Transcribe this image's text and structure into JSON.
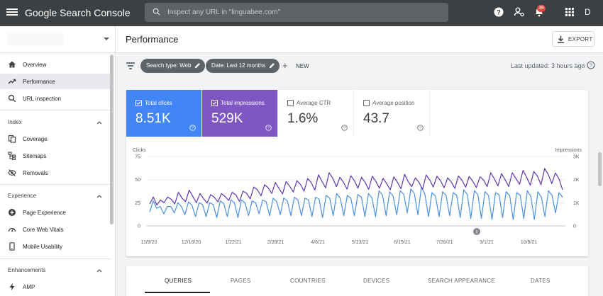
{
  "topbar": {
    "logo": "Google Search Console",
    "search_placeholder": "Inspect any URL in \"linguabee.com\"",
    "notification_count": "36",
    "avatar_letter": "D"
  },
  "sidebar": {
    "items_top": [
      {
        "label": "Overview",
        "icon": "home-icon"
      },
      {
        "label": "Performance",
        "icon": "trending-up-icon",
        "active": true
      },
      {
        "label": "URL inspection",
        "icon": "search-icon"
      }
    ],
    "sections": [
      {
        "title": "Index",
        "items": [
          {
            "label": "Coverage",
            "icon": "copy-icon"
          },
          {
            "label": "Sitemaps",
            "icon": "sitemap-icon"
          },
          {
            "label": "Removals",
            "icon": "visibility-off-icon"
          }
        ]
      },
      {
        "title": "Experience",
        "items": [
          {
            "label": "Page Experience",
            "icon": "add-circle-icon"
          },
          {
            "label": "Core Web Vitals",
            "icon": "speedometer-icon"
          },
          {
            "label": "Mobile Usability",
            "icon": "smartphone-icon"
          }
        ]
      },
      {
        "title": "Enhancements",
        "items": [
          {
            "label": "AMP",
            "icon": "bolt-icon"
          }
        ]
      }
    ]
  },
  "header": {
    "title": "Performance",
    "export_label": "EXPORT"
  },
  "filters": {
    "chips": [
      "Search type: Web",
      "Date: Last 12 months"
    ],
    "new_label": "NEW",
    "last_updated": "Last updated: 3 hours ago"
  },
  "metrics": [
    {
      "label": "Total clicks",
      "value": "8.51K",
      "checked": true,
      "color": "#4285f4"
    },
    {
      "label": "Total impressions",
      "value": "529K",
      "checked": true,
      "color": "#7e57c2"
    },
    {
      "label": "Average CTR",
      "value": "1.6%",
      "checked": false
    },
    {
      "label": "Average position",
      "value": "43.7",
      "checked": false
    }
  ],
  "chart_data": {
    "type": "line",
    "left_axis_label": "Clicks",
    "right_axis_label": "Impressions",
    "left_ticks": [
      "75",
      "50",
      "25",
      "0"
    ],
    "right_ticks": [
      "3K",
      "2K",
      "1K",
      "0"
    ],
    "left_ylim": [
      0,
      75
    ],
    "right_ylim": [
      0,
      3000
    ],
    "x_ticks": [
      "11/9/20",
      "12/16/20",
      "1/22/21",
      "2/28/21",
      "4/6/21",
      "5/13/21",
      "6/19/21",
      "7/26/21",
      "9/1/21",
      "10/8/21"
    ],
    "annotation_marker": "!",
    "series": [
      {
        "name": "Clicks",
        "color": "#4a90e2",
        "axis": "left",
        "values": [
          15,
          27,
          19,
          21,
          13,
          21,
          21,
          14,
          25,
          21,
          12,
          26,
          22,
          10,
          25,
          23,
          10,
          25,
          23,
          9,
          27,
          24,
          10,
          28,
          25,
          9,
          28,
          25,
          11,
          27,
          25,
          13,
          28,
          26,
          11,
          30,
          26,
          12,
          30,
          27,
          11,
          31,
          28,
          11,
          30,
          28,
          10,
          31,
          29,
          9,
          33,
          30,
          11,
          35,
          30,
          11,
          33,
          30,
          11,
          34,
          31,
          10,
          35,
          30,
          10,
          38,
          33,
          11,
          37,
          32,
          12,
          38,
          34,
          14,
          40,
          35,
          12,
          42,
          34,
          10,
          36,
          32,
          10,
          37,
          33,
          11,
          36,
          33,
          9,
          39,
          34,
          8,
          38,
          34,
          8,
          37,
          33,
          7,
          36,
          34,
          9,
          37,
          33,
          7,
          36,
          33,
          8,
          38,
          32,
          7,
          37,
          31,
          10,
          38,
          33,
          14,
          36,
          31
        ]
      },
      {
        "name": "Impressions",
        "color": "#5e35b1",
        "axis": "right",
        "values": [
          950,
          1250,
          900,
          1120,
          1000,
          1250,
          1150,
          950,
          1450,
          1200,
          1050,
          1550,
          1280,
          1000,
          1400,
          1180,
          990,
          1350,
          1240,
          1040,
          1400,
          1270,
          1100,
          1450,
          1340,
          1060,
          1500,
          1410,
          1170,
          1680,
          1560,
          1300,
          1780,
          1650,
          1400,
          1880,
          1620,
          1380,
          1920,
          1710,
          1470,
          1950,
          1790,
          1500,
          2050,
          1870,
          1550,
          2210,
          1930,
          1640,
          2300,
          2060,
          1700,
          2100,
          1880,
          1590,
          2170,
          1960,
          1630,
          2100,
          1880,
          1580,
          2150,
          1920,
          1630,
          2050,
          1830,
          1560,
          2120,
          1890,
          1610,
          2230,
          1920,
          1700,
          2080,
          1880,
          1580,
          2200,
          1990,
          1680,
          2150,
          1960,
          1650,
          2080,
          1900,
          1620,
          2160,
          1970,
          1670,
          2140,
          1930,
          1660,
          2120,
          1980,
          1700,
          2300,
          2040,
          1730,
          2260,
          2000,
          1700,
          2300,
          2050,
          1800,
          2400,
          2100,
          1760,
          2350,
          2150,
          1780,
          2480,
          2230,
          1830,
          2290,
          2040,
          1560
        ]
      }
    ]
  },
  "tabs": [
    "QUERIES",
    "PAGES",
    "COUNTRIES",
    "DEVICES",
    "SEARCH APPEARANCE",
    "DATES"
  ]
}
